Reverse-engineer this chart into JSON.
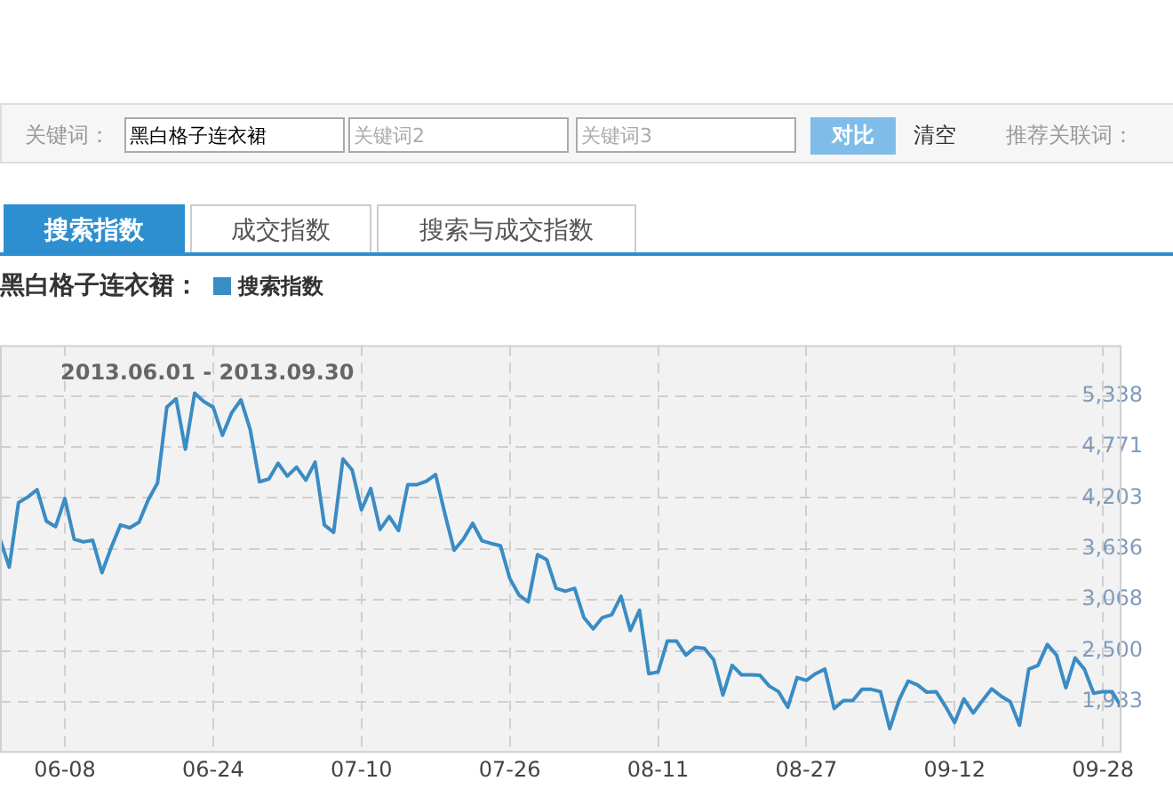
{
  "chart_data": {
    "type": "line",
    "title": "黑白格子连衣裙：",
    "annotations": [
      "2013.06.01 - 2013.09.30",
      "关键词：",
      "黑白格子连衣裙",
      "关键词2",
      "关键词3",
      "对比",
      "清空",
      "推荐关联词：",
      "搜索指数",
      "成交指数",
      "搜索与成交指数"
    ],
    "x": [
      "2013-06-01",
      "2013-06-02",
      "2013-06-03",
      "2013-06-04",
      "2013-06-05",
      "2013-06-06",
      "2013-06-07",
      "2013-06-08",
      "2013-06-09",
      "2013-06-10",
      "2013-06-11",
      "2013-06-12",
      "2013-06-13",
      "2013-06-14",
      "2013-06-15",
      "2013-06-16",
      "2013-06-17",
      "2013-06-18",
      "2013-06-19",
      "2013-06-20",
      "2013-06-21",
      "2013-06-22",
      "2013-06-23",
      "2013-06-24",
      "2013-06-25",
      "2013-06-26",
      "2013-06-27",
      "2013-06-28",
      "2013-06-29",
      "2013-06-30",
      "2013-07-01",
      "2013-07-02",
      "2013-07-03",
      "2013-07-04",
      "2013-07-05",
      "2013-07-06",
      "2013-07-07",
      "2013-07-08",
      "2013-07-09",
      "2013-07-10",
      "2013-07-11",
      "2013-07-12",
      "2013-07-13",
      "2013-07-14",
      "2013-07-15",
      "2013-07-16",
      "2013-07-17",
      "2013-07-18",
      "2013-07-19",
      "2013-07-20",
      "2013-07-21",
      "2013-07-22",
      "2013-07-23",
      "2013-07-24",
      "2013-07-25",
      "2013-07-26",
      "2013-07-27",
      "2013-07-28",
      "2013-07-29",
      "2013-07-30",
      "2013-07-31",
      "2013-08-01",
      "2013-08-02",
      "2013-08-03",
      "2013-08-04",
      "2013-08-05",
      "2013-08-06",
      "2013-08-07",
      "2013-08-08",
      "2013-08-09",
      "2013-08-10",
      "2013-08-11",
      "2013-08-12",
      "2013-08-13",
      "2013-08-14",
      "2013-08-15",
      "2013-08-16",
      "2013-08-17",
      "2013-08-18",
      "2013-08-19",
      "2013-08-20",
      "2013-08-21",
      "2013-08-22",
      "2013-08-23",
      "2013-08-24",
      "2013-08-25",
      "2013-08-26",
      "2013-08-27",
      "2013-08-28",
      "2013-08-29",
      "2013-08-30",
      "2013-08-31",
      "2013-09-01",
      "2013-09-02",
      "2013-09-03",
      "2013-09-04",
      "2013-09-05",
      "2013-09-06",
      "2013-09-07",
      "2013-09-08",
      "2013-09-09",
      "2013-09-10",
      "2013-09-11",
      "2013-09-12",
      "2013-09-13",
      "2013-09-14",
      "2013-09-15",
      "2013-09-16",
      "2013-09-17",
      "2013-09-18",
      "2013-09-19",
      "2013-09-20",
      "2013-09-21",
      "2013-09-22",
      "2013-09-23",
      "2013-09-24",
      "2013-09-25",
      "2013-09-26",
      "2013-09-27",
      "2013-09-28",
      "2013-09-29",
      "2013-09-30"
    ],
    "series": [
      {
        "name": "搜索指数",
        "color": "#3a8cc4",
        "values": [
          3745,
          3433,
          4152,
          4214,
          4296,
          3946,
          3883,
          4196,
          3745,
          3714,
          3733,
          3371,
          3652,
          3902,
          3871,
          3933,
          4183,
          4371,
          5214,
          5308,
          4746,
          5371,
          5277,
          5214,
          4902,
          5152,
          5296,
          4964,
          4383,
          4414,
          4589,
          4446,
          4546,
          4402,
          4602,
          3902,
          3821,
          4639,
          4514,
          4071,
          4308,
          3852,
          3996,
          3840,
          4352,
          4352,
          4389,
          4464,
          4027,
          3621,
          3745,
          3921,
          3727,
          3696,
          3671,
          3308,
          3121,
          3046,
          3571,
          3514,
          3196,
          3164,
          3196,
          2871,
          2746,
          2871,
          2902,
          3108,
          2727,
          2952,
          2246,
          2264,
          2608,
          2608,
          2452,
          2539,
          2527,
          2402,
          2008,
          2339,
          2233,
          2233,
          2227,
          2108,
          2046,
          1871,
          2202,
          2171,
          2246,
          2296,
          1858,
          1946,
          1946,
          2071,
          2071,
          2046,
          1633,
          1952,
          2164,
          2121,
          2039,
          2046,
          1883,
          1702,
          1964,
          1808,
          1946,
          2077,
          1996,
          1933,
          1671,
          2296,
          2339,
          2571,
          2452,
          2089,
          2421,
          2296,
          2027,
          2046,
          2046,
          1871
        ]
      }
    ],
    "xlim": [
      "2013-06-01",
      "2013-09-30"
    ],
    "xticks": [
      {
        "value": "2013-06-08",
        "label": "06-08"
      },
      {
        "value": "2013-06-24",
        "label": "06-24"
      },
      {
        "value": "2013-07-10",
        "label": "07-10"
      },
      {
        "value": "2013-07-26",
        "label": "07-26"
      },
      {
        "value": "2013-08-11",
        "label": "08-11"
      },
      {
        "value": "2013-08-27",
        "label": "08-27"
      },
      {
        "value": "2013-09-12",
        "label": "09-12"
      },
      {
        "value": "2013-09-28",
        "label": "09-28"
      }
    ],
    "ylim": [
      1365,
      5906
    ],
    "yticks": [
      {
        "value": 1933,
        "label": "1,933"
      },
      {
        "value": 2500,
        "label": "2,500"
      },
      {
        "value": 3068,
        "label": "3,068"
      },
      {
        "value": 3636,
        "label": "3,636"
      },
      {
        "value": 4203,
        "label": "4,203"
      },
      {
        "value": 4771,
        "label": "4,771"
      },
      {
        "value": 5338,
        "label": "5,338"
      }
    ],
    "grid": true,
    "legend": "top left",
    "marker": "none",
    "line_style": "solid"
  }
}
